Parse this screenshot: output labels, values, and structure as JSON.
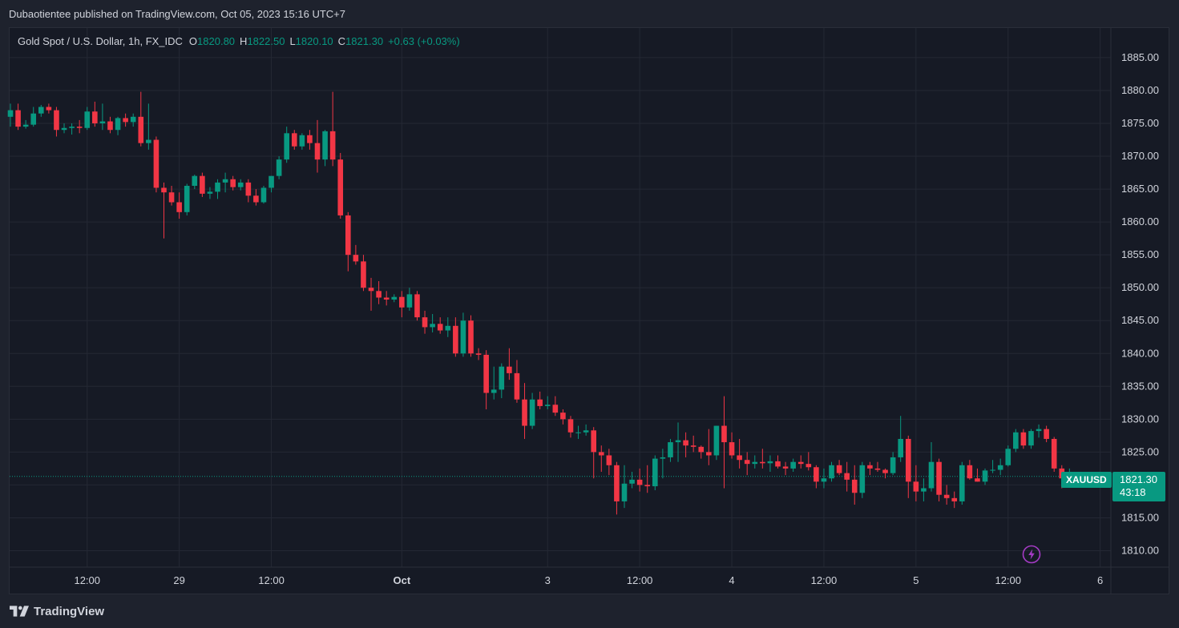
{
  "header": {
    "published_text": "Dubaotientee published on TradingView.com, Oct 05, 2023 15:16 UTC+7"
  },
  "legend": {
    "symbol": "Gold Spot / U.S. Dollar, 1h, FX_IDC",
    "open_label": "O",
    "open": "1820.80",
    "high_label": "H",
    "high": "1822.50",
    "low_label": "L",
    "low": "1820.10",
    "close_label": "C",
    "close": "1821.30",
    "change": "+0.63 (+0.03%)"
  },
  "price_tag": {
    "symbol": "XAUUSD",
    "price": "1821.30",
    "countdown": "43:18"
  },
  "footer": {
    "brand": "TradingView"
  },
  "icons": {
    "logo": "tradingview-logo-icon",
    "flash": "lightning-icon"
  },
  "colors": {
    "up": "#089981",
    "down": "#f23645",
    "background": "#161a25",
    "grid": "#242834"
  },
  "chart_data": {
    "type": "candlestick",
    "timeframe": "1h",
    "y_ticks": [
      "1885.00",
      "1880.00",
      "1875.00",
      "1870.00",
      "1865.00",
      "1860.00",
      "1855.00",
      "1850.00",
      "1845.00",
      "1840.00",
      "1835.00",
      "1830.00",
      "1825.00",
      "1820.00",
      "1815.00",
      "1810.00"
    ],
    "ylim": [
      1807.5,
      1889.5
    ],
    "x_ticks": [
      {
        "label": "12:00",
        "index": 10
      },
      {
        "label": "29",
        "index": 22
      },
      {
        "label": "12:00",
        "index": 34
      },
      {
        "label": "Oct",
        "index": 51
      },
      {
        "label": "3",
        "index": 70
      },
      {
        "label": "12:00",
        "index": 82
      },
      {
        "label": "4",
        "index": 94
      },
      {
        "label": "12:00",
        "index": 106
      },
      {
        "label": "5",
        "index": 118
      },
      {
        "label": "12:00",
        "index": 130
      },
      {
        "label": "6",
        "index": 142
      }
    ],
    "current_price": 1821.3,
    "ohlc": [
      [
        1876,
        1878,
        1874.5,
        1877
      ],
      [
        1877,
        1878,
        1874,
        1874.5
      ],
      [
        1874.5,
        1875.5,
        1874.2,
        1874.8
      ],
      [
        1874.8,
        1877.5,
        1874.5,
        1876.5
      ],
      [
        1876.5,
        1877.8,
        1876,
        1877.5
      ],
      [
        1877.5,
        1878,
        1876.5,
        1877
      ],
      [
        1877,
        1877.5,
        1873,
        1874
      ],
      [
        1874,
        1875,
        1873.5,
        1874.3
      ],
      [
        1874.3,
        1875,
        1873.3,
        1874.5
      ],
      [
        1874.5,
        1875.5,
        1873.5,
        1874.3
      ],
      [
        1874.3,
        1877.5,
        1874,
        1876.8
      ],
      [
        1876.8,
        1878.3,
        1874.5,
        1875
      ],
      [
        1875,
        1878,
        1874,
        1875.3
      ],
      [
        1875.3,
        1876,
        1873.5,
        1874
      ],
      [
        1874,
        1876,
        1873.2,
        1875.8
      ],
      [
        1875.8,
        1876.5,
        1874.5,
        1875.2
      ],
      [
        1875.2,
        1876.5,
        1874.5,
        1876
      ],
      [
        1876,
        1879.8,
        1871.5,
        1872
      ],
      [
        1872,
        1878,
        1871,
        1872.5
      ],
      [
        1872.5,
        1873,
        1864.5,
        1865.2
      ],
      [
        1865.2,
        1866,
        1857.5,
        1864.5
      ],
      [
        1864.5,
        1865.5,
        1862.5,
        1863
      ],
      [
        1863,
        1864.5,
        1860.5,
        1861.5
      ],
      [
        1861.5,
        1865.8,
        1861,
        1865.5
      ],
      [
        1865.5,
        1867.2,
        1865,
        1867
      ],
      [
        1867,
        1867.5,
        1863.8,
        1864.3
      ],
      [
        1864.3,
        1865.3,
        1863.5,
        1864.6
      ],
      [
        1864.6,
        1866.5,
        1863.5,
        1866
      ],
      [
        1866,
        1867.5,
        1864.5,
        1866.5
      ],
      [
        1866.5,
        1867,
        1864.8,
        1865.3
      ],
      [
        1865.3,
        1866.5,
        1864.8,
        1866
      ],
      [
        1866,
        1866.5,
        1863,
        1864
      ],
      [
        1864,
        1865,
        1862.5,
        1863
      ],
      [
        1863,
        1865.5,
        1862.8,
        1865.2
      ],
      [
        1865.2,
        1867,
        1864.5,
        1867
      ],
      [
        1867,
        1870,
        1866.5,
        1869.5
      ],
      [
        1869.5,
        1874.5,
        1869,
        1873.5
      ],
      [
        1873.5,
        1874,
        1871,
        1871.5
      ],
      [
        1871.5,
        1873.5,
        1871,
        1873.2
      ],
      [
        1873.2,
        1874,
        1871,
        1872
      ],
      [
        1872,
        1875.5,
        1867.5,
        1869.5
      ],
      [
        1869.5,
        1874,
        1868.5,
        1873.8
      ],
      [
        1873.8,
        1879.8,
        1868.5,
        1869.5
      ],
      [
        1869.5,
        1870.5,
        1860.5,
        1861
      ],
      [
        1861,
        1861.5,
        1852.5,
        1855
      ],
      [
        1855,
        1856.5,
        1853.5,
        1854
      ],
      [
        1854,
        1855,
        1849.5,
        1850
      ],
      [
        1850,
        1851.5,
        1846.5,
        1849.5
      ],
      [
        1849.5,
        1851,
        1847.5,
        1848.5
      ],
      [
        1848.5,
        1849.5,
        1847.3,
        1848.2
      ],
      [
        1848.2,
        1849,
        1847.8,
        1848.6
      ],
      [
        1848.6,
        1849.5,
        1845.5,
        1847
      ],
      [
        1847,
        1850,
        1846.5,
        1849
      ],
      [
        1849,
        1849.5,
        1845,
        1845.5
      ],
      [
        1845.5,
        1846.5,
        1843,
        1844
      ],
      [
        1844,
        1846,
        1843.2,
        1844.5
      ],
      [
        1844.5,
        1845.5,
        1843,
        1843.5
      ],
      [
        1843.5,
        1845.5,
        1842.5,
        1844.2
      ],
      [
        1844.2,
        1845.5,
        1839.5,
        1840
      ],
      [
        1840,
        1846.2,
        1839.5,
        1845
      ],
      [
        1845,
        1845.8,
        1839.5,
        1840
      ],
      [
        1840,
        1840.8,
        1839,
        1839.8
      ],
      [
        1839.8,
        1840.5,
        1831.5,
        1834
      ],
      [
        1834,
        1838,
        1833,
        1834.5
      ],
      [
        1834.5,
        1838.5,
        1833.2,
        1838
      ],
      [
        1838,
        1840.8,
        1836,
        1837
      ],
      [
        1837,
        1839,
        1832.5,
        1833
      ],
      [
        1833,
        1835.5,
        1827,
        1829
      ],
      [
        1829,
        1834,
        1828.5,
        1833
      ],
      [
        1833,
        1834.2,
        1831.5,
        1832
      ],
      [
        1832,
        1833.5,
        1831.5,
        1832.2
      ],
      [
        1832.2,
        1833.5,
        1830.5,
        1831
      ],
      [
        1831,
        1831.5,
        1829.2,
        1830
      ],
      [
        1830,
        1830.5,
        1827.2,
        1828
      ],
      [
        1828,
        1829,
        1827,
        1828
      ],
      [
        1828,
        1829.2,
        1827.5,
        1828.3
      ],
      [
        1828.3,
        1828.8,
        1821,
        1825
      ],
      [
        1825,
        1826,
        1822,
        1824.5
      ],
      [
        1824.5,
        1825.5,
        1821.5,
        1823
      ],
      [
        1823,
        1823.5,
        1815.5,
        1817.5
      ],
      [
        1817.5,
        1823,
        1816.5,
        1820.2
      ],
      [
        1820.2,
        1822,
        1819.5,
        1820.8
      ],
      [
        1820.8,
        1822.5,
        1819,
        1820
      ],
      [
        1820,
        1823,
        1818.8,
        1819.8
      ],
      [
        1819.8,
        1824.5,
        1819.2,
        1824
      ],
      [
        1824,
        1825.5,
        1821,
        1824.2
      ],
      [
        1824.2,
        1827,
        1823.5,
        1826.5
      ],
      [
        1826.5,
        1829.5,
        1823.5,
        1826.8
      ],
      [
        1826.8,
        1828,
        1824.2,
        1826
      ],
      [
        1826,
        1827.5,
        1825,
        1825.8
      ],
      [
        1825.8,
        1826,
        1824,
        1825
      ],
      [
        1825,
        1828.5,
        1823,
        1824.5
      ],
      [
        1824.5,
        1829,
        1823.8,
        1829
      ],
      [
        1829,
        1833.5,
        1819.5,
        1826.5
      ],
      [
        1826.5,
        1828,
        1824,
        1824.5
      ],
      [
        1824.5,
        1827,
        1822.5,
        1823.8
      ],
      [
        1823.8,
        1825,
        1821.5,
        1823.2
      ],
      [
        1823.2,
        1824.5,
        1822.5,
        1823.5
      ],
      [
        1823.5,
        1825.5,
        1822.5,
        1823.3
      ],
      [
        1823.3,
        1824.5,
        1822,
        1823.6
      ],
      [
        1823.6,
        1824.5,
        1822.5,
        1822.8
      ],
      [
        1822.8,
        1823.5,
        1821.5,
        1822.5
      ],
      [
        1822.5,
        1824,
        1822,
        1823.5
      ],
      [
        1823.5,
        1824.5,
        1822.5,
        1823.2
      ],
      [
        1823.2,
        1825,
        1822.2,
        1822.7
      ],
      [
        1822.7,
        1823,
        1819.5,
        1820.5
      ],
      [
        1820.5,
        1822.5,
        1819.5,
        1821
      ],
      [
        1821,
        1823.5,
        1820.5,
        1823
      ],
      [
        1823,
        1823.8,
        1821.5,
        1821.8
      ],
      [
        1821.8,
        1823.5,
        1819,
        1820.8
      ],
      [
        1820.8,
        1823,
        1817,
        1818.8
      ],
      [
        1818.8,
        1823.5,
        1818,
        1823
      ],
      [
        1823,
        1823.5,
        1821.5,
        1822.5
      ],
      [
        1822.5,
        1823.5,
        1822,
        1822.3
      ],
      [
        1822.3,
        1822.5,
        1821,
        1821.8
      ],
      [
        1821.8,
        1825,
        1821.5,
        1824.2
      ],
      [
        1824.2,
        1830.5,
        1823.5,
        1827
      ],
      [
        1827,
        1827.5,
        1818,
        1820.5
      ],
      [
        1820.5,
        1823,
        1817.5,
        1819
      ],
      [
        1819,
        1821,
        1817.5,
        1819.5
      ],
      [
        1819.5,
        1826.5,
        1819,
        1823.5
      ],
      [
        1823.5,
        1824,
        1817.5,
        1818.5
      ],
      [
        1818.5,
        1820,
        1817,
        1818
      ],
      [
        1818,
        1819,
        1816.5,
        1817.5
      ],
      [
        1817.5,
        1823.5,
        1817,
        1823
      ],
      [
        1823,
        1823.8,
        1820.8,
        1821
      ],
      [
        1821,
        1822.5,
        1820.5,
        1820.5
      ],
      [
        1820.5,
        1822.5,
        1820,
        1822.2
      ],
      [
        1822.2,
        1823.8,
        1821.8,
        1822.3
      ],
      [
        1822.3,
        1824,
        1821.5,
        1823
      ],
      [
        1823,
        1826,
        1822.8,
        1825.5
      ],
      [
        1825.5,
        1828.5,
        1825,
        1828
      ],
      [
        1828,
        1828.5,
        1825.5,
        1826
      ],
      [
        1826,
        1828.5,
        1825.5,
        1828.2
      ],
      [
        1828.2,
        1829.2,
        1827.2,
        1828.5
      ],
      [
        1828.5,
        1829,
        1826.5,
        1827
      ],
      [
        1827,
        1827.3,
        1822,
        1822.5
      ],
      [
        1822.5,
        1823,
        1819.5,
        1821
      ],
      [
        1820.8,
        1822.5,
        1820.1,
        1821.3
      ]
    ]
  }
}
